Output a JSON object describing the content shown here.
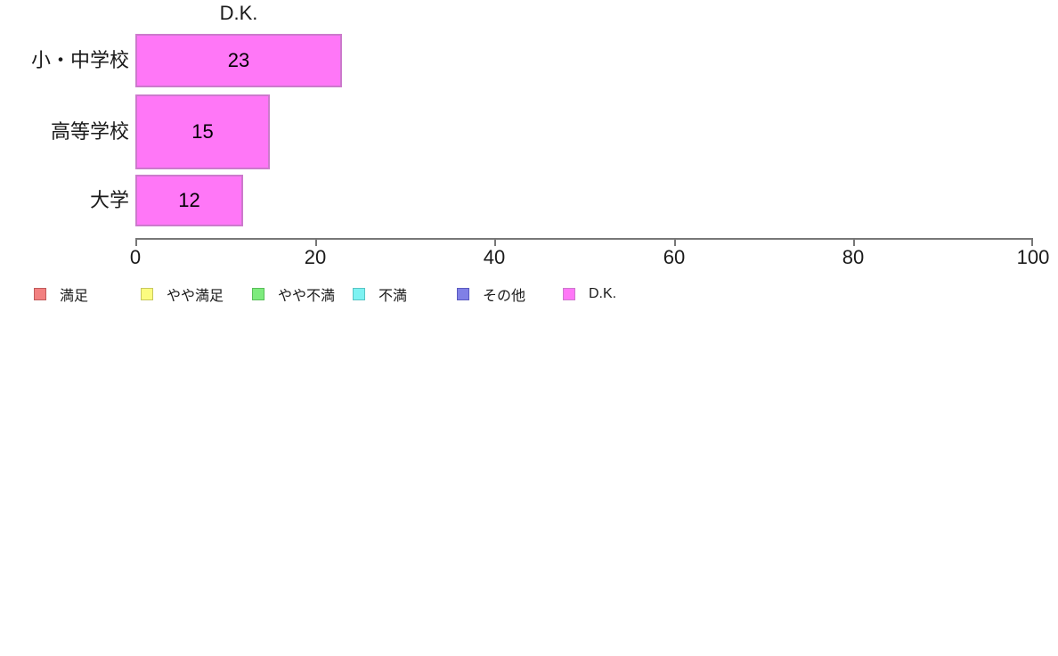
{
  "chart_data": {
    "type": "bar",
    "orientation": "horizontal",
    "title": "D.K.",
    "categories": [
      "小・中学校",
      "高等学校",
      "大学"
    ],
    "values": [
      23,
      15,
      12
    ],
    "series_name": "D.K.",
    "xlabel": "",
    "ylabel": "",
    "xlim": [
      0,
      100
    ],
    "x_ticks": [
      0,
      20,
      40,
      60,
      80,
      100
    ],
    "grid": "off",
    "value_labels_shown": true,
    "bar_fill": "#ff77f7",
    "bar_border": "#cc7acc",
    "axis_color": "#777777",
    "legend_position": "bottom"
  },
  "legend": {
    "items": [
      {
        "label": "満足",
        "fill": "#f28080",
        "border": "#c05b5b"
      },
      {
        "label": "やや満足",
        "fill": "#fcfc80",
        "border": "#c8c85e"
      },
      {
        "label": "やや不満",
        "fill": "#7deb7d",
        "border": "#59be59"
      },
      {
        "label": "不満",
        "fill": "#7df2f2",
        "border": "#58c4c4"
      },
      {
        "label": "その他",
        "fill": "#8080e6",
        "border": "#5a5ac0"
      },
      {
        "label": "D.K.",
        "fill": "#ff77f7",
        "border": "#cc7acc"
      }
    ]
  }
}
